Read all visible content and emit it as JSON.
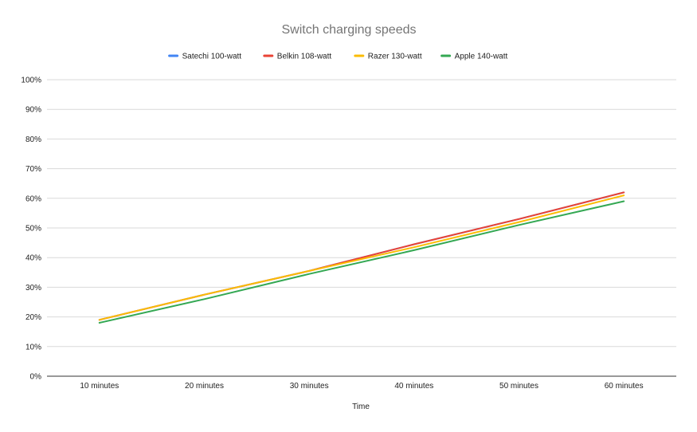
{
  "chart_data": {
    "type": "line",
    "title": "Switch charging speeds",
    "xlabel": "Time",
    "ylabel": "",
    "categories": [
      "10 minutes",
      "20 minutes",
      "30 minutes",
      "40 minutes",
      "50 minutes",
      "60 minutes"
    ],
    "ylim": [
      0,
      100
    ],
    "yticks": [
      "0%",
      "10%",
      "20%",
      "30%",
      "40%",
      "50%",
      "60%",
      "70%",
      "80%",
      "90%",
      "100%"
    ],
    "grid": true,
    "legend_position": "top",
    "series": [
      {
        "name": "Satechi 100-watt",
        "color": "#4285f4",
        "values": [
          19,
          27.5,
          35.5,
          44.5,
          53,
          62
        ]
      },
      {
        "name": "Belkin 108-watt",
        "color": "#ea4335",
        "values": [
          19,
          27.5,
          35.5,
          44.5,
          53,
          62
        ]
      },
      {
        "name": "Razer 130-watt",
        "color": "#fbbc04",
        "values": [
          19,
          27.5,
          35.5,
          43.5,
          52,
          61
        ]
      },
      {
        "name": "Apple 140-watt",
        "color": "#34a853",
        "values": [
          18,
          26,
          34.5,
          42.5,
          51,
          59
        ]
      }
    ]
  }
}
